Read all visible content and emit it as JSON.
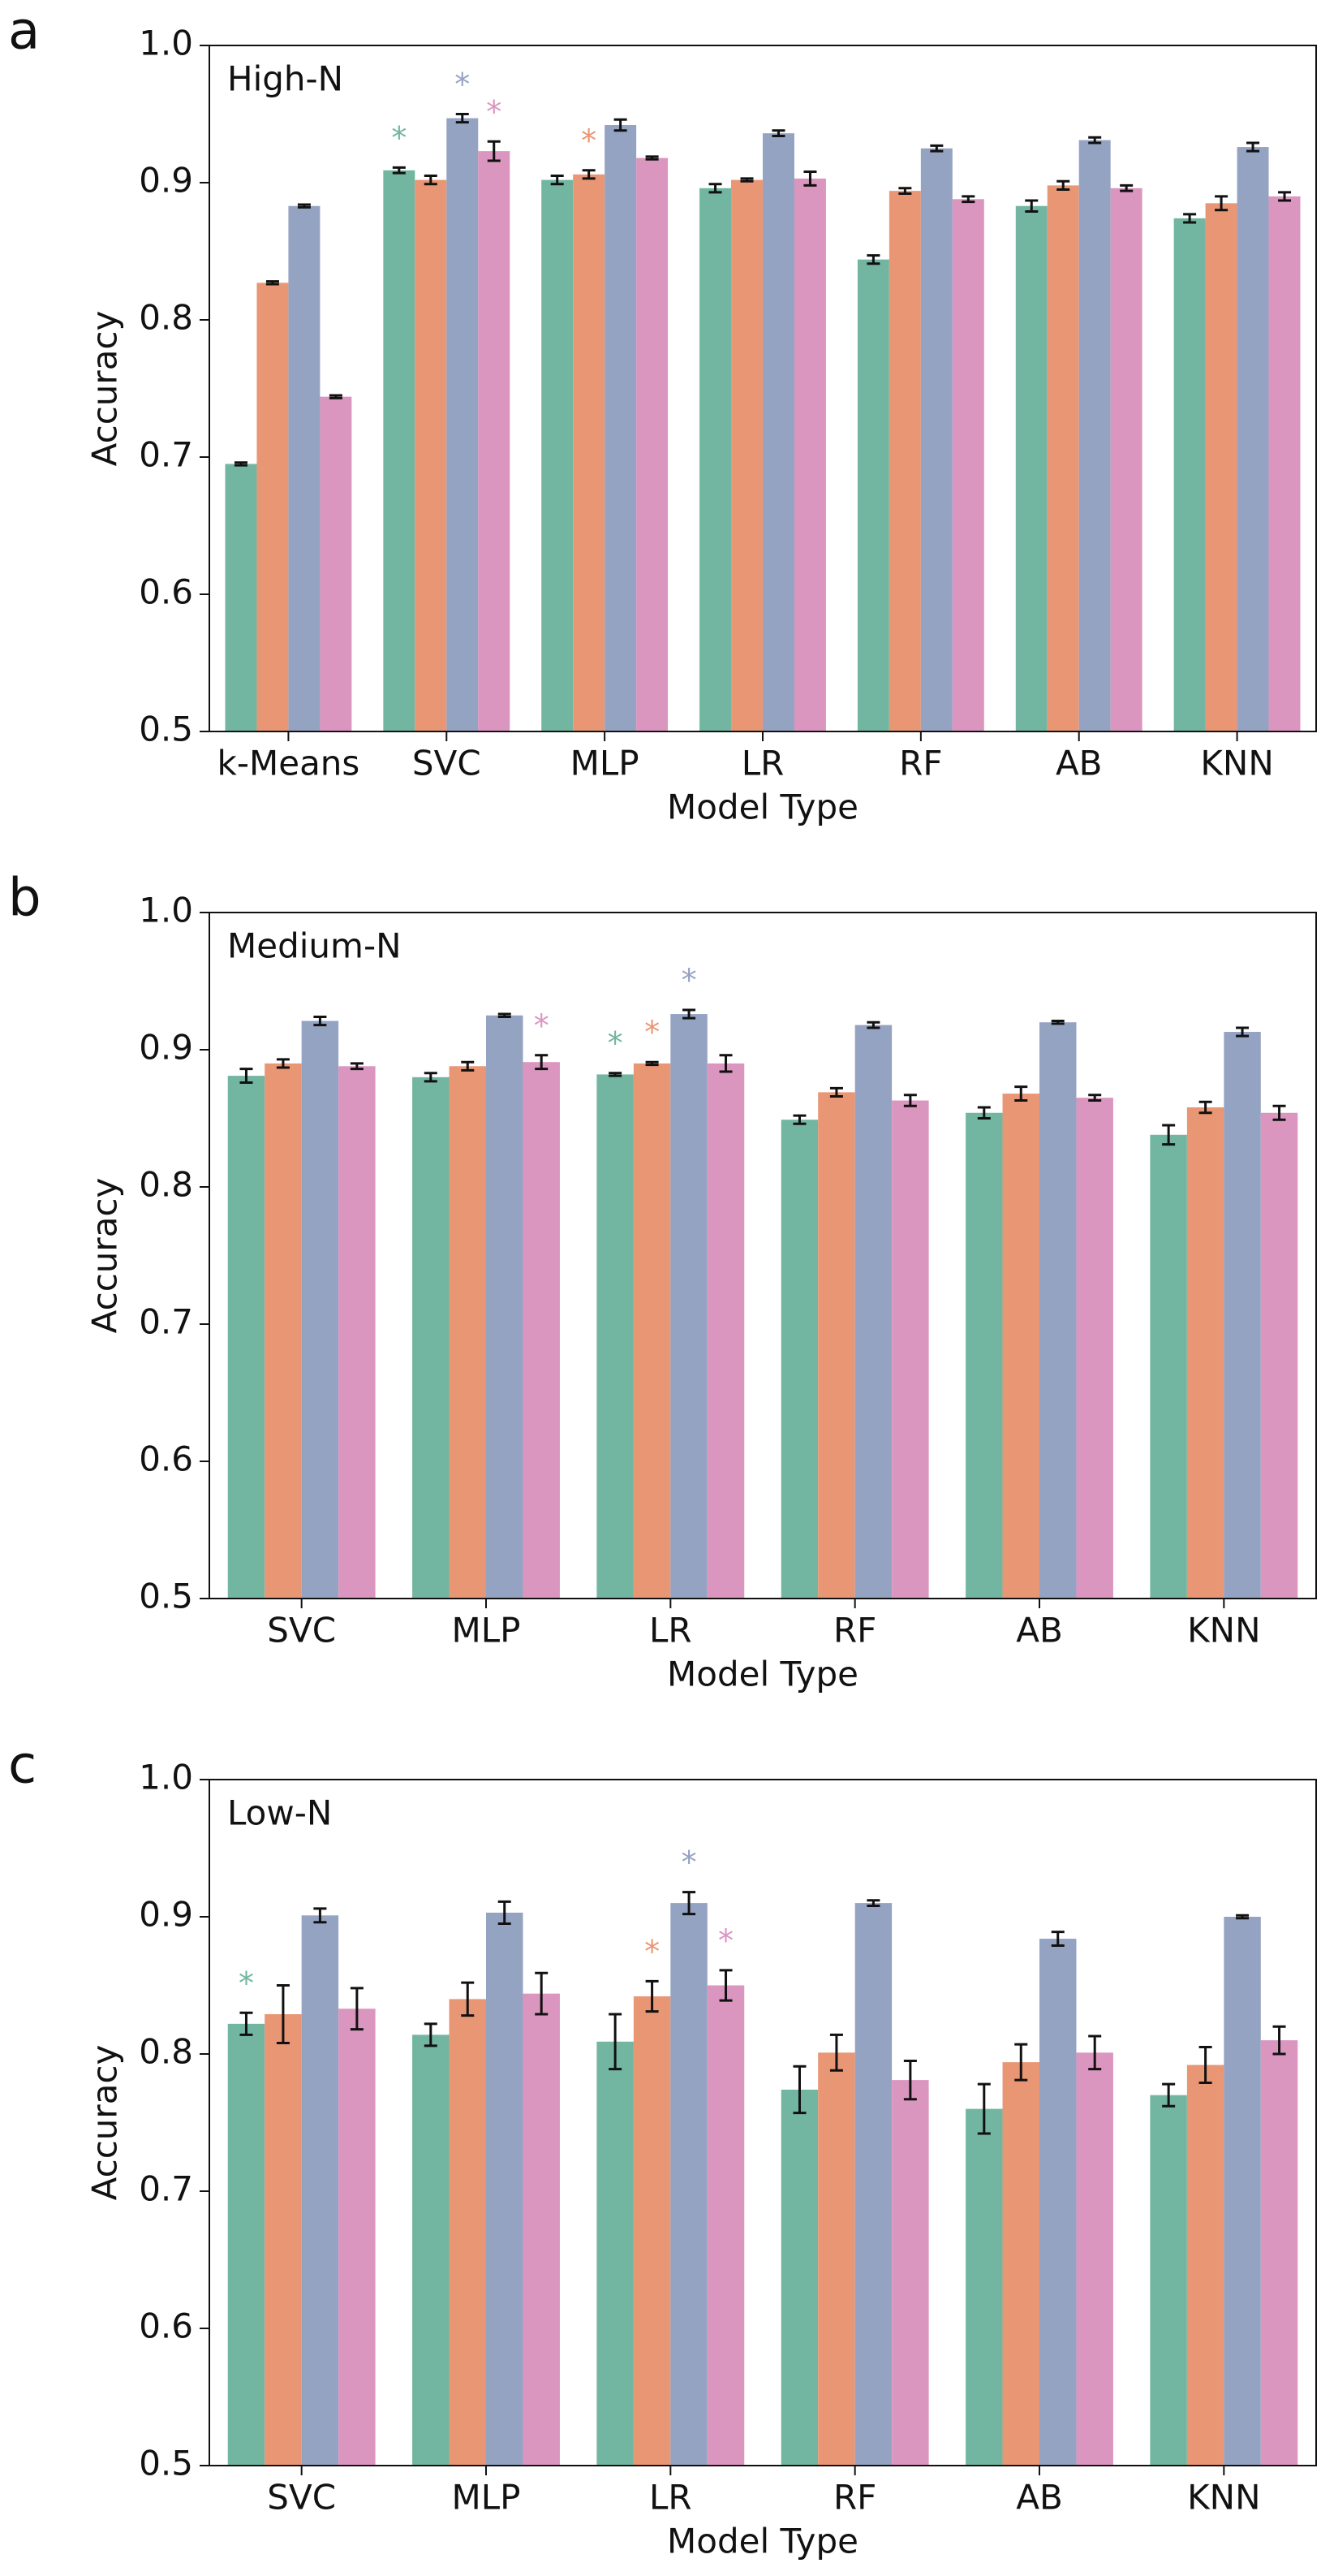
{
  "chart_data": [
    {
      "type": "bar",
      "panel_label": "a",
      "title": "High-N",
      "xlabel": "Model Type",
      "ylabel": "Accuracy",
      "categories": [
        "k-Means",
        "SVC",
        "MLP",
        "LR",
        "RF",
        "AB",
        "KNN"
      ],
      "series": [
        {
          "color": "#72b6a1",
          "values": [
            0.695,
            0.909,
            0.902,
            0.896,
            0.844,
            0.883,
            0.874
          ],
          "errors": [
            0.001,
            0.002,
            0.003,
            0.003,
            0.003,
            0.004,
            0.003
          ]
        },
        {
          "color": "#e99675",
          "values": [
            0.827,
            0.902,
            0.906,
            0.902,
            0.894,
            0.898,
            0.885
          ],
          "errors": [
            0.001,
            0.003,
            0.003,
            0.001,
            0.002,
            0.003,
            0.005
          ]
        },
        {
          "color": "#95a3c3",
          "values": [
            0.883,
            0.947,
            0.942,
            0.936,
            0.925,
            0.931,
            0.926
          ],
          "errors": [
            0.001,
            0.003,
            0.004,
            0.002,
            0.002,
            0.002,
            0.003
          ]
        },
        {
          "color": "#db96c0",
          "values": [
            0.744,
            0.923,
            0.918,
            0.903,
            0.888,
            0.896,
            0.89
          ],
          "errors": [
            0.001,
            0.007,
            0.001,
            0.005,
            0.002,
            0.002,
            0.003
          ]
        }
      ],
      "annotations": [
        {
          "text": "*",
          "series": 0,
          "category": 1
        },
        {
          "text": "*",
          "series": 2,
          "category": 1
        },
        {
          "text": "*",
          "series": 3,
          "category": 1
        },
        {
          "text": "*",
          "series": 1,
          "category": 2
        }
      ],
      "ylim": [
        0.5,
        1.0
      ],
      "yticks": [
        0.5,
        0.6,
        0.7,
        0.8,
        0.9,
        {
          "value": 1,
          "label": "1.0"
        }
      ]
    },
    {
      "type": "bar",
      "panel_label": "b",
      "title": "Medium-N",
      "xlabel": "Model Type",
      "ylabel": "Accuracy",
      "categories": [
        "SVC",
        "MLP",
        "LR",
        "RF",
        "AB",
        "KNN"
      ],
      "series": [
        {
          "color": "#72b6a1",
          "values": [
            0.881,
            0.88,
            0.882,
            0.849,
            0.854,
            0.838
          ],
          "errors": [
            0.005,
            0.003,
            0.001,
            0.003,
            0.004,
            0.007
          ]
        },
        {
          "color": "#e99675",
          "values": [
            0.89,
            0.888,
            0.89,
            0.869,
            0.868,
            0.858
          ],
          "errors": [
            0.003,
            0.003,
            0.001,
            0.003,
            0.005,
            0.004
          ]
        },
        {
          "color": "#95a3c3",
          "values": [
            0.921,
            0.925,
            0.926,
            0.918,
            0.92,
            0.913
          ],
          "errors": [
            0.003,
            0.001,
            0.003,
            0.002,
            0.001,
            0.003
          ]
        },
        {
          "color": "#db96c0",
          "values": [
            0.888,
            0.891,
            0.89,
            0.863,
            0.865,
            0.854
          ],
          "errors": [
            0.002,
            0.005,
            0.006,
            0.004,
            0.002,
            0.005
          ]
        }
      ],
      "annotations": [
        {
          "text": "*",
          "series": 3,
          "category": 1
        },
        {
          "text": "*",
          "series": 0,
          "category": 2
        },
        {
          "text": "*",
          "series": 1,
          "category": 2
        },
        {
          "text": "*",
          "series": 2,
          "category": 2
        }
      ],
      "ylim": [
        0.5,
        1.0
      ],
      "yticks": [
        0.5,
        0.6,
        0.7,
        0.8,
        0.9,
        {
          "value": 1,
          "label": "1.0"
        }
      ]
    },
    {
      "type": "bar",
      "panel_label": "c",
      "title": "Low-N",
      "xlabel": "Model Type",
      "ylabel": "Accuracy",
      "categories": [
        "SVC",
        "MLP",
        "LR",
        "RF",
        "AB",
        "KNN"
      ],
      "series": [
        {
          "color": "#72b6a1",
          "values": [
            0.822,
            0.814,
            0.809,
            0.774,
            0.76,
            0.77
          ],
          "errors": [
            0.008,
            0.008,
            0.02,
            0.017,
            0.018,
            0.008
          ]
        },
        {
          "color": "#e99675",
          "values": [
            0.829,
            0.84,
            0.842,
            0.801,
            0.794,
            0.792
          ],
          "errors": [
            0.021,
            0.012,
            0.011,
            0.013,
            0.013,
            0.013
          ]
        },
        {
          "color": "#95a3c3",
          "values": [
            0.901,
            0.903,
            0.91,
            0.91,
            0.884,
            0.9
          ],
          "errors": [
            0.005,
            0.008,
            0.008,
            0.002,
            0.005,
            0.001
          ]
        },
        {
          "color": "#db96c0",
          "values": [
            0.833,
            0.844,
            0.85,
            0.781,
            0.801,
            0.81
          ],
          "errors": [
            0.015,
            0.015,
            0.011,
            0.014,
            0.012,
            0.01
          ]
        }
      ],
      "annotations": [
        {
          "text": "*",
          "series": 0,
          "category": 0
        },
        {
          "text": "*",
          "series": 1,
          "category": 2
        },
        {
          "text": "*",
          "series": 2,
          "category": 2
        },
        {
          "text": "*",
          "series": 3,
          "category": 2
        }
      ],
      "ylim": [
        0.5,
        1.0
      ],
      "yticks": [
        0.5,
        0.6,
        0.7,
        0.8,
        0.9,
        {
          "value": 1,
          "label": "1.0"
        }
      ]
    }
  ]
}
